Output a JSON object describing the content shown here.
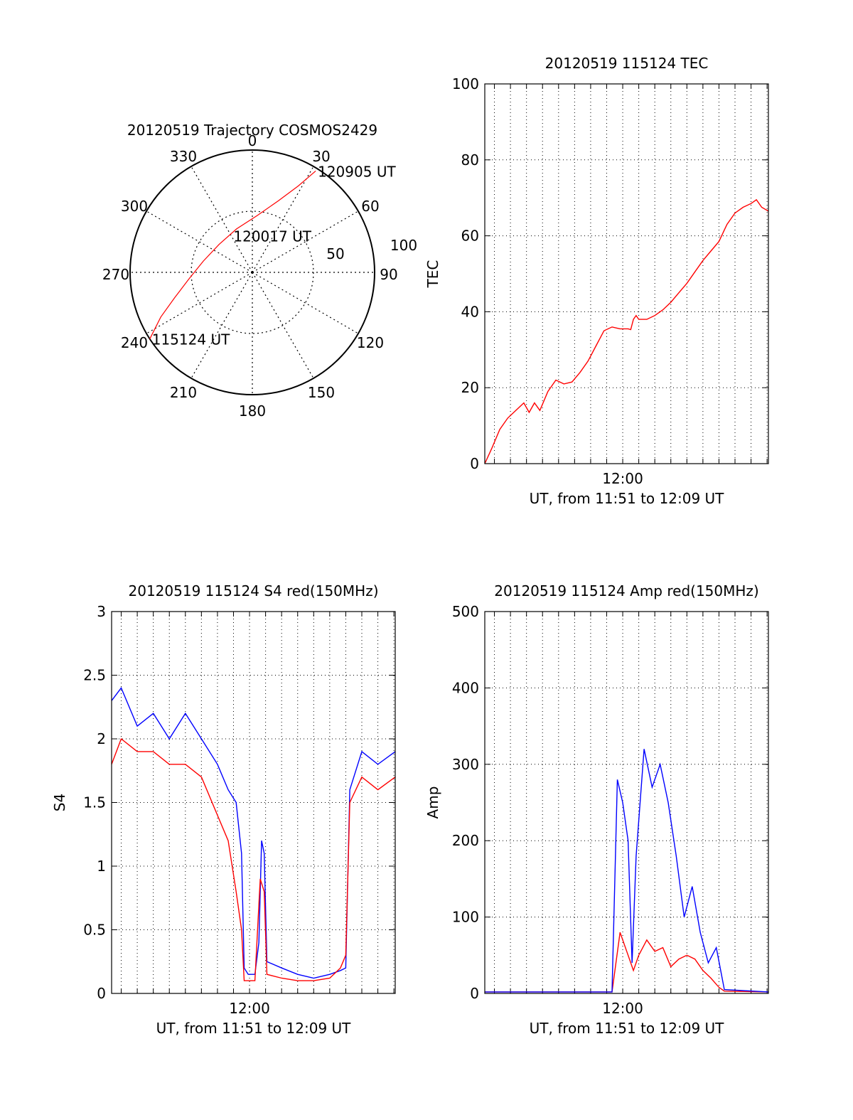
{
  "chart_data": [
    {
      "type": "polar-trajectory",
      "title": "20120519 Trajectory COSMOS2429",
      "azimuth_labels": [
        "0",
        "30",
        "60",
        "90",
        "120",
        "150",
        "180",
        "210",
        "240",
        "270",
        "300",
        "330"
      ],
      "ring_labels": [
        "50",
        "100"
      ],
      "trajectory_color": "#ff0000",
      "trajectory": [
        {
          "az": 237,
          "zen": 90
        },
        {
          "az": 244,
          "zen": 75
        },
        {
          "az": 252,
          "zen": 60
        },
        {
          "az": 264,
          "zen": 47
        },
        {
          "az": 283,
          "zen": 37
        },
        {
          "az": 310,
          "zen": 32
        },
        {
          "az": 340,
          "zen": 34
        },
        {
          "az": 5,
          "zen": 42
        },
        {
          "az": 20,
          "zen": 56
        },
        {
          "az": 28,
          "zen": 72
        },
        {
          "az": 32,
          "zen": 88
        }
      ],
      "annotations": [
        {
          "text": "115124 UT",
          "az": 237,
          "zen": 90
        },
        {
          "text": "120017 UT",
          "az": 330,
          "zen": 31
        },
        {
          "text": "120905 UT",
          "az": 32,
          "zen": 88
        }
      ]
    },
    {
      "type": "line",
      "title": "20120519 115124 TEC",
      "xlabel": "UT, from 11:51 to 12:09 UT",
      "ylabel": "TEC",
      "xlim": [
        "11:51:24",
        "12:09:05"
      ],
      "ylim": [
        0,
        100
      ],
      "y_ticks": [
        "0",
        "20",
        "40",
        "60",
        "80",
        "100"
      ],
      "x_tick_labels": [
        {
          "time": "12:00",
          "label": "12:00"
        }
      ],
      "grid": true,
      "series": [
        {
          "color": "#ff0000",
          "points": [
            [
              "11:51:24",
              0
            ],
            [
              "11:51:50",
              4
            ],
            [
              "11:52:20",
              9
            ],
            [
              "11:52:50",
              12
            ],
            [
              "11:53:20",
              14
            ],
            [
              "11:53:50",
              16
            ],
            [
              "11:54:10",
              13.5
            ],
            [
              "11:54:30",
              16
            ],
            [
              "11:54:50",
              14
            ],
            [
              "11:55:20",
              19
            ],
            [
              "11:55:50",
              22
            ],
            [
              "11:56:20",
              21
            ],
            [
              "11:56:50",
              21.5
            ],
            [
              "11:57:20",
              24
            ],
            [
              "11:57:50",
              27
            ],
            [
              "11:58:20",
              31
            ],
            [
              "11:58:50",
              35
            ],
            [
              "11:59:20",
              36
            ],
            [
              "11:59:50",
              35.5
            ],
            [
              "12:00:20",
              35.5
            ],
            [
              "12:00:30",
              35.3
            ],
            [
              "12:00:40",
              38
            ],
            [
              "12:00:50",
              39
            ],
            [
              "12:01:00",
              38
            ],
            [
              "12:01:30",
              38
            ],
            [
              "12:02:00",
              39
            ],
            [
              "12:02:30",
              40.5
            ],
            [
              "12:03:00",
              42.5
            ],
            [
              "12:03:30",
              45
            ],
            [
              "12:04:00",
              47.5
            ],
            [
              "12:04:30",
              50.5
            ],
            [
              "12:05:00",
              53.5
            ],
            [
              "12:05:30",
              56
            ],
            [
              "12:06:00",
              58.5
            ],
            [
              "12:06:30",
              63
            ],
            [
              "12:07:00",
              66
            ],
            [
              "12:07:30",
              67.5
            ],
            [
              "12:08:00",
              68.5
            ],
            [
              "12:08:20",
              69.5
            ],
            [
              "12:08:40",
              67.5
            ],
            [
              "12:09:05",
              66.5
            ]
          ]
        }
      ]
    },
    {
      "type": "line",
      "title": "20120519 115124 S4 red(150MHz)",
      "xlabel": "UT, from 11:51 to 12:09 UT",
      "ylabel": "S4",
      "xlim": [
        "11:51:24",
        "12:09:05"
      ],
      "ylim": [
        0,
        3
      ],
      "y_ticks": [
        "0",
        "0.5",
        "1",
        "1.5",
        "2",
        "2.5",
        "3"
      ],
      "x_tick_labels": [
        {
          "time": "12:00",
          "label": "12:00"
        }
      ],
      "grid": true,
      "series": [
        {
          "color": "#0000ff",
          "points": [
            [
              "11:51:24",
              2.3
            ],
            [
              "11:52:00",
              2.4
            ],
            [
              "11:53:00",
              2.1
            ],
            [
              "11:54:00",
              2.2
            ],
            [
              "11:55:00",
              2.0
            ],
            [
              "11:56:00",
              2.2
            ],
            [
              "11:57:00",
              2.0
            ],
            [
              "11:58:00",
              1.8
            ],
            [
              "11:58:40",
              1.6
            ],
            [
              "11:59:10",
              1.5
            ],
            [
              "11:59:30",
              1.1
            ],
            [
              "11:59:40",
              0.2
            ],
            [
              "11:59:55",
              0.15
            ],
            [
              "12:00:20",
              0.15
            ],
            [
              "12:00:35",
              0.4
            ],
            [
              "12:00:45",
              1.2
            ],
            [
              "12:00:55",
              1.1
            ],
            [
              "12:01:05",
              0.25
            ],
            [
              "12:02:00",
              0.2
            ],
            [
              "12:03:00",
              0.15
            ],
            [
              "12:04:00",
              0.12
            ],
            [
              "12:05:00",
              0.15
            ],
            [
              "12:05:40",
              0.18
            ],
            [
              "12:06:00",
              0.2
            ],
            [
              "12:06:15",
              1.6
            ],
            [
              "12:07:00",
              1.9
            ],
            [
              "12:08:00",
              1.8
            ],
            [
              "12:09:05",
              1.9
            ]
          ]
        },
        {
          "color": "#ff0000",
          "points": [
            [
              "11:51:24",
              1.8
            ],
            [
              "11:52:00",
              2.0
            ],
            [
              "11:53:00",
              1.9
            ],
            [
              "11:54:00",
              1.9
            ],
            [
              "11:55:00",
              1.8
            ],
            [
              "11:56:00",
              1.8
            ],
            [
              "11:57:00",
              1.7
            ],
            [
              "11:58:00",
              1.4
            ],
            [
              "11:58:40",
              1.2
            ],
            [
              "11:59:10",
              0.8
            ],
            [
              "11:59:30",
              0.5
            ],
            [
              "11:59:40",
              0.1
            ],
            [
              "12:00:20",
              0.1
            ],
            [
              "12:00:40",
              0.9
            ],
            [
              "12:00:55",
              0.8
            ],
            [
              "12:01:05",
              0.15
            ],
            [
              "12:02:00",
              0.12
            ],
            [
              "12:03:00",
              0.1
            ],
            [
              "12:04:00",
              0.1
            ],
            [
              "12:05:00",
              0.12
            ],
            [
              "12:05:40",
              0.2
            ],
            [
              "12:06:00",
              0.3
            ],
            [
              "12:06:15",
              1.5
            ],
            [
              "12:07:00",
              1.7
            ],
            [
              "12:08:00",
              1.6
            ],
            [
              "12:09:05",
              1.7
            ]
          ]
        }
      ]
    },
    {
      "type": "line",
      "title": "20120519 115124 Amp red(150MHz)",
      "xlabel": "UT, from 11:51 to 12:09 UT",
      "ylabel": "Amp",
      "xlim": [
        "11:51:24",
        "12:09:05"
      ],
      "ylim": [
        0,
        500
      ],
      "y_ticks": [
        "0",
        "100",
        "200",
        "300",
        "400",
        "500"
      ],
      "x_tick_labels": [
        {
          "time": "12:00",
          "label": "12:00"
        }
      ],
      "grid": true,
      "series": [
        {
          "color": "#ff0000",
          "points": [
            [
              "11:51:24",
              2
            ],
            [
              "11:59:20",
              2
            ],
            [
              "11:59:50",
              80
            ],
            [
              "12:00:20",
              50
            ],
            [
              "12:00:40",
              30
            ],
            [
              "12:01:00",
              50
            ],
            [
              "12:01:30",
              70
            ],
            [
              "12:02:00",
              55
            ],
            [
              "12:02:30",
              60
            ],
            [
              "12:03:00",
              35
            ],
            [
              "12:03:30",
              45
            ],
            [
              "12:04:00",
              50
            ],
            [
              "12:04:30",
              45
            ],
            [
              "12:05:00",
              30
            ],
            [
              "12:05:30",
              20
            ],
            [
              "12:06:00",
              8
            ],
            [
              "12:06:20",
              3
            ],
            [
              "12:09:05",
              2
            ]
          ]
        },
        {
          "color": "#0000ff",
          "points": [
            [
              "11:51:24",
              2
            ],
            [
              "11:59:20",
              2
            ],
            [
              "11:59:40",
              280
            ],
            [
              "12:00:00",
              250
            ],
            [
              "12:00:20",
              200
            ],
            [
              "12:00:35",
              40
            ],
            [
              "12:00:50",
              180
            ],
            [
              "12:01:20",
              320
            ],
            [
              "12:01:50",
              270
            ],
            [
              "12:02:20",
              300
            ],
            [
              "12:02:50",
              250
            ],
            [
              "12:03:20",
              180
            ],
            [
              "12:03:50",
              100
            ],
            [
              "12:04:20",
              140
            ],
            [
              "12:04:50",
              80
            ],
            [
              "12:05:20",
              40
            ],
            [
              "12:05:50",
              60
            ],
            [
              "12:06:20",
              5
            ],
            [
              "12:09:05",
              2
            ]
          ]
        }
      ]
    }
  ]
}
